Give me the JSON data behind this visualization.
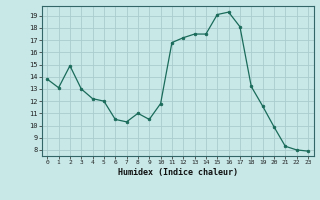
{
  "x": [
    0,
    1,
    2,
    3,
    4,
    5,
    6,
    7,
    8,
    9,
    10,
    11,
    12,
    13,
    14,
    15,
    16,
    17,
    18,
    19,
    20,
    21,
    22,
    23
  ],
  "y": [
    13.8,
    13.1,
    14.9,
    13.0,
    12.2,
    12.0,
    10.5,
    10.3,
    11.0,
    10.5,
    11.8,
    16.8,
    17.2,
    17.5,
    17.5,
    19.1,
    19.3,
    18.1,
    13.2,
    11.6,
    9.9,
    8.3,
    8.0,
    7.9
  ],
  "line_color": "#1a6b5a",
  "marker_color": "#1a6b5a",
  "bg_color": "#c8e8e8",
  "grid_color": "#aacccc",
  "xlabel": "Humidex (Indice chaleur)",
  "ylabel_ticks": [
    8,
    9,
    10,
    11,
    12,
    13,
    14,
    15,
    16,
    17,
    18,
    19
  ],
  "ylim": [
    7.5,
    19.8
  ],
  "xlim": [
    -0.5,
    23.5
  ]
}
